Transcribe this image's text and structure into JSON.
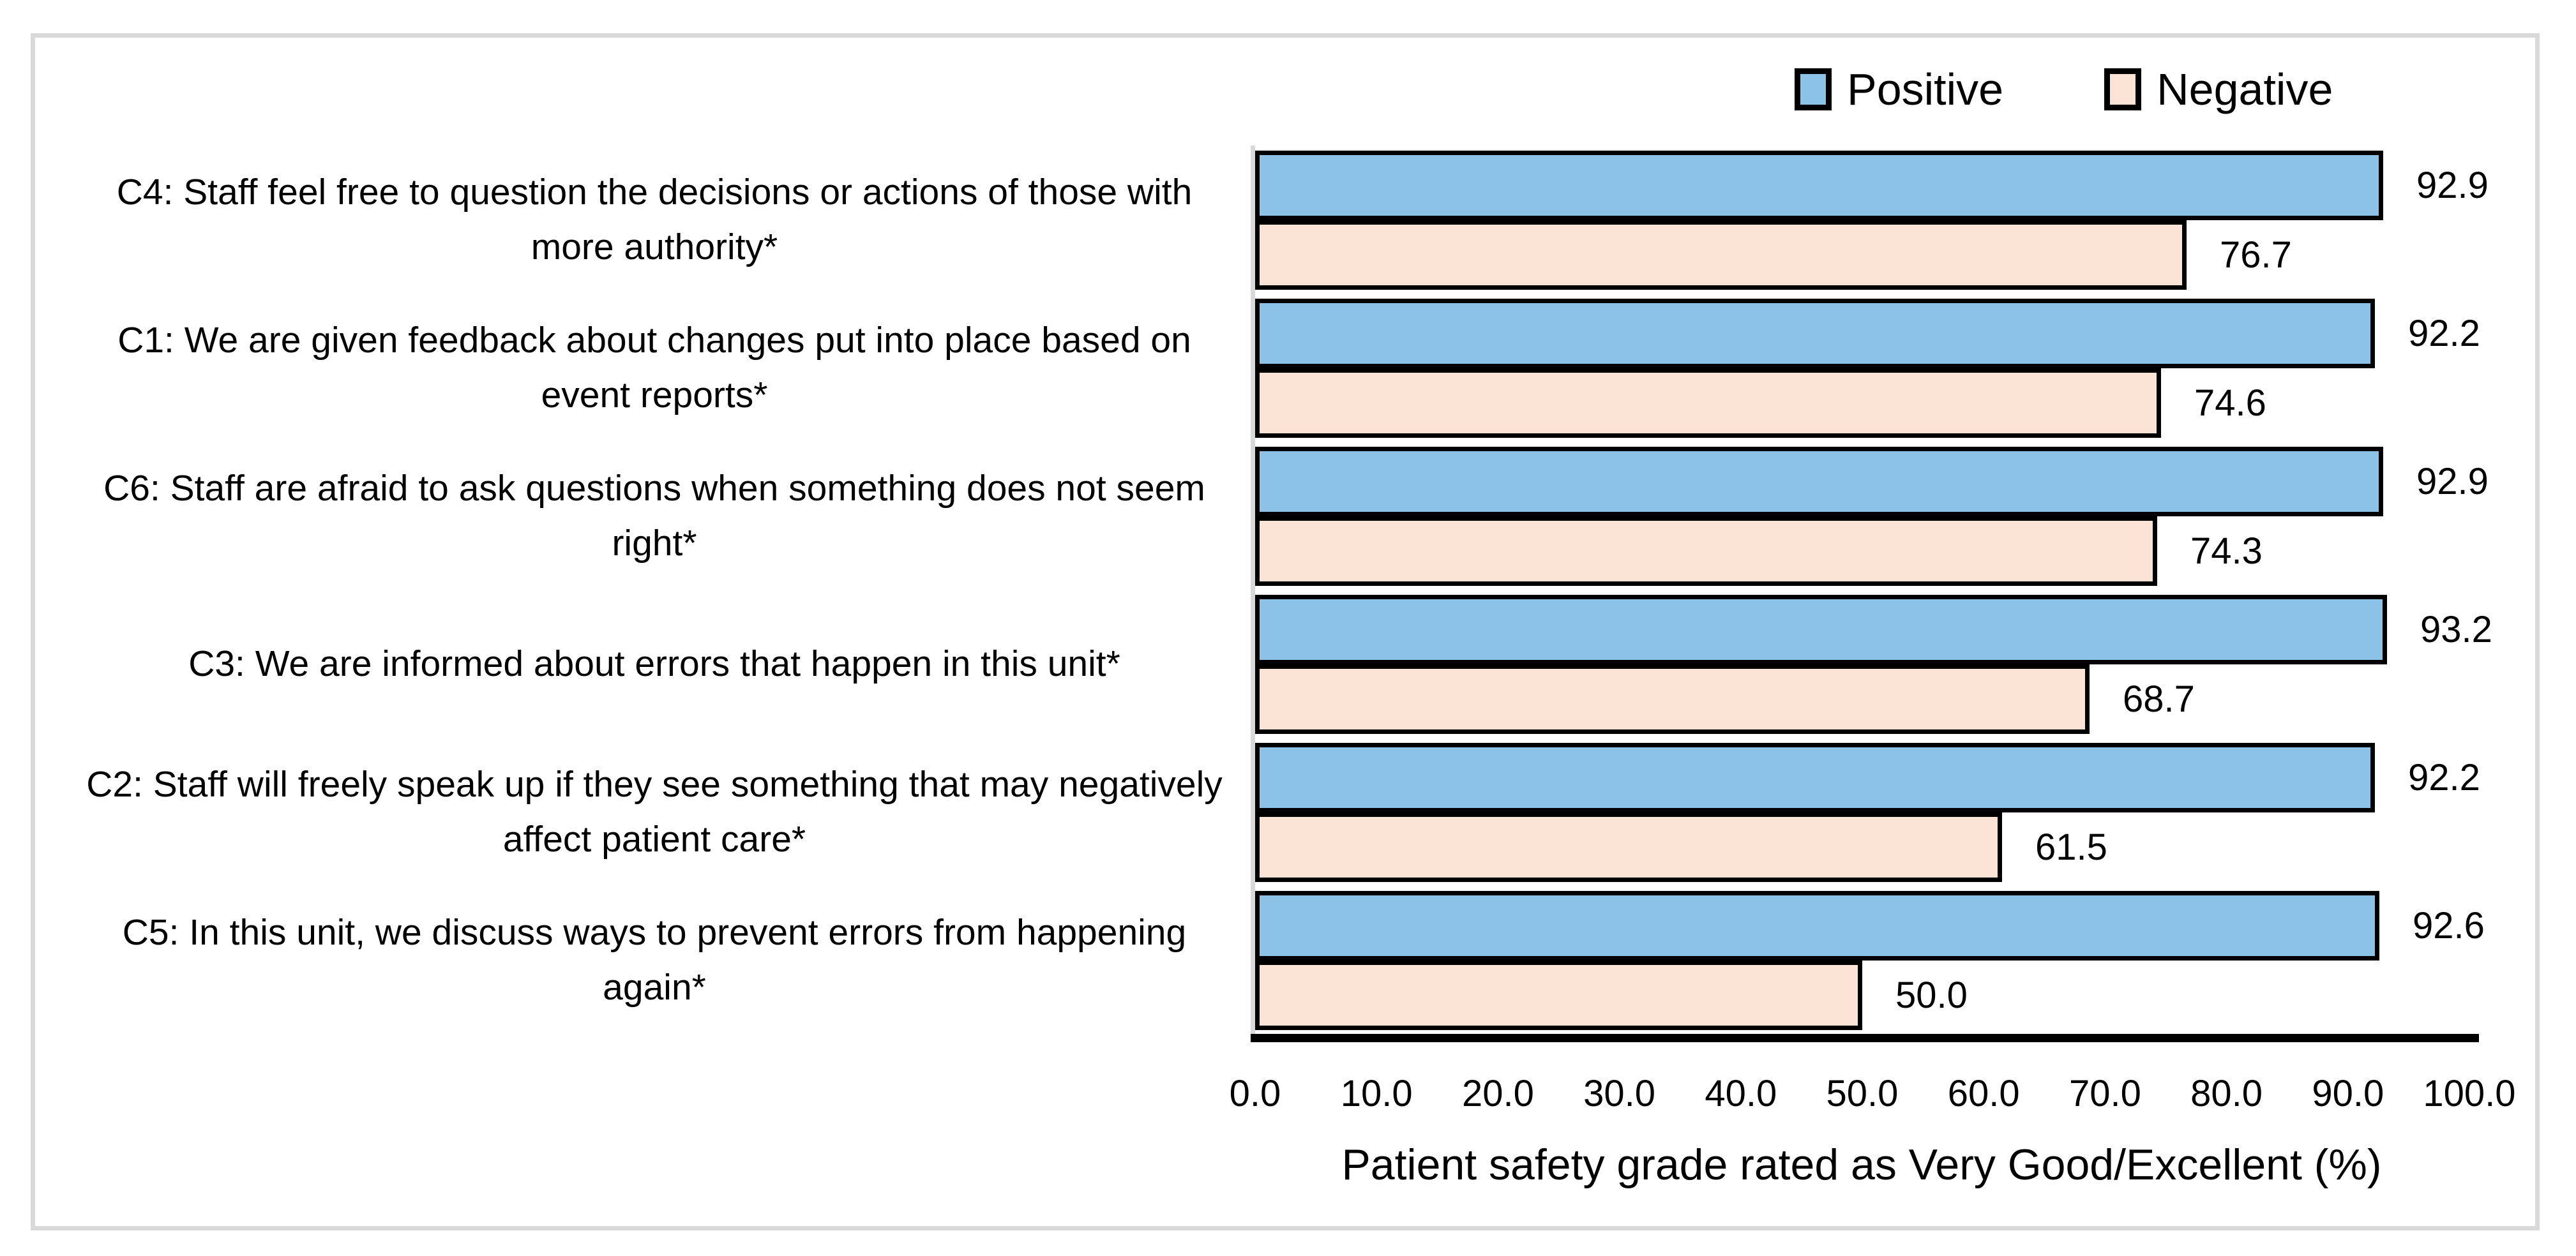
{
  "figure": {
    "background": "#FFFFFF",
    "border_color": "#D9D9D9"
  },
  "legend": {
    "position": "top-right",
    "items": [
      {
        "label": "Positive",
        "color": "#8CC2E5"
      },
      {
        "label": "Negative",
        "color": "#FBE4D5"
      }
    ]
  },
  "chart_data": {
    "type": "bar",
    "orientation": "horizontal",
    "title": "",
    "xlabel": "Patient safety grade rated as Very Good/Excellent (%)",
    "ylabel": "",
    "xlim": [
      0,
      100
    ],
    "xticks": [
      "0.0",
      "10.0",
      "20.0",
      "30.0",
      "40.0",
      "50.0",
      "60.0",
      "70.0",
      "80.0",
      "90.0",
      "100.0"
    ],
    "grid": false,
    "legend_position": "top-right",
    "bar_border_color": "#000000",
    "value_labels": true,
    "value_label_decimals": 1,
    "categories": [
      "C4: Staff feel free to question the decisions or actions of those with more authority*",
      "C1: We are given feedback about changes put into place based on event reports*",
      "C6: Staff are afraid to ask questions when something does not seem right*",
      "C3: We are informed about errors that happen in this unit*",
      "C2: Staff will freely speak up if they see something that may negatively affect patient care*",
      "C5: In this unit, we discuss ways to prevent errors from happening again*"
    ],
    "series": [
      {
        "name": "Positive",
        "color": "#8CC2E5",
        "values": [
          92.9,
          92.2,
          92.9,
          93.2,
          92.2,
          92.6
        ]
      },
      {
        "name": "Negative",
        "color": "#FBE4D5",
        "values": [
          76.7,
          74.6,
          74.3,
          68.7,
          61.5,
          50.0
        ]
      }
    ]
  }
}
